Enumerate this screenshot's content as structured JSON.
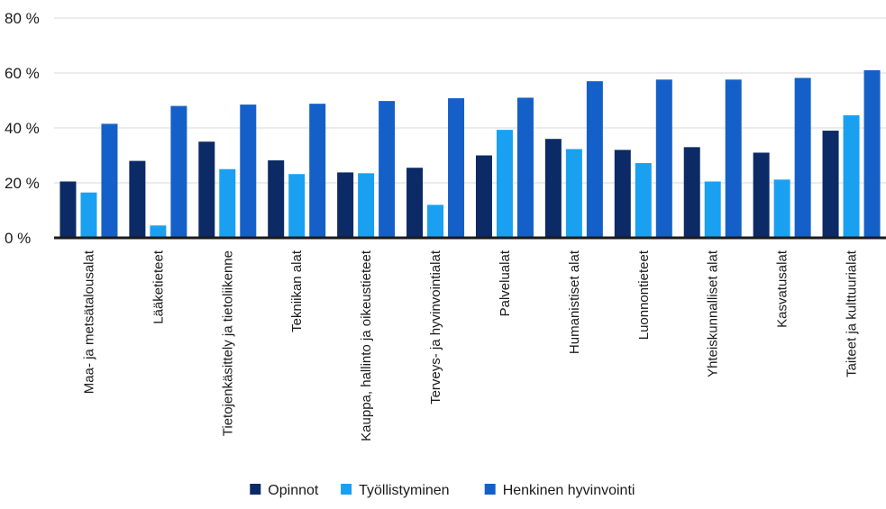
{
  "chart_data": {
    "type": "bar",
    "categories": [
      "Maa- ja metsätalousalat",
      "Lääketieteet",
      "Tietojenkäsittely ja tietoliikenne",
      "Tekniikan alat",
      "Kauppa, hallinto ja oikeustieteet",
      "Terveys- ja hyvinvointialat",
      "Palvelualat",
      "Humanistiset alat",
      "Luonnontieteet",
      "Yhteiskunnalliset alat",
      "Kasvatusalat",
      "Taiteet ja kulttuurialat"
    ],
    "series": [
      {
        "name": "Opinnot",
        "color": "#0b2a66",
        "values": [
          20.5,
          28,
          35,
          28.2,
          23.8,
          25.5,
          30,
          36,
          32,
          33,
          31,
          39
        ]
      },
      {
        "name": "Työllistyminen",
        "color": "#1aa0f0",
        "values": [
          16.5,
          4.5,
          25,
          23.2,
          23.5,
          12,
          39.3,
          32.3,
          27.2,
          20.5,
          21.2,
          44.6
        ]
      },
      {
        "name": "Henkinen hyvinvointi",
        "color": "#1560c8",
        "values": [
          41.5,
          48,
          48.5,
          48.8,
          49.8,
          50.8,
          51,
          57,
          57.6,
          57.6,
          58.2,
          61
        ]
      }
    ],
    "yticks": [
      0,
      20,
      40,
      60,
      80
    ],
    "ytick_labels": [
      "0 %",
      "20 %",
      "40 %",
      "60 %",
      "80 %"
    ],
    "ylim": [
      0,
      80
    ],
    "grid": true,
    "legend_position": "bottom-center",
    "title": "",
    "xlabel": "",
    "ylabel": ""
  }
}
